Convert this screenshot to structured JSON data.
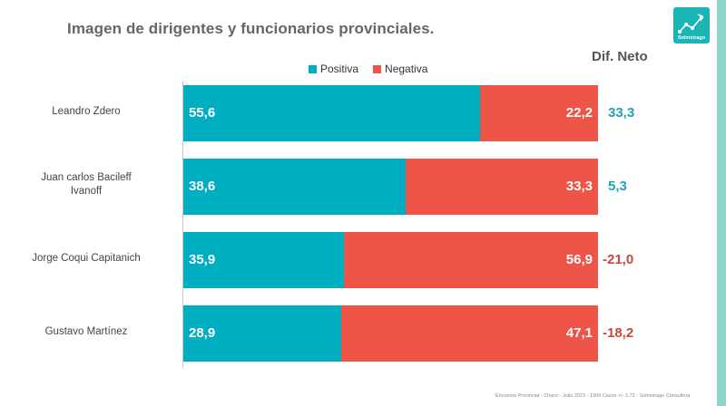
{
  "title": "Imagen de dirigentes y funcionarios provinciales.",
  "logo": {
    "text": "Solmoirago",
    "icon": "trend-chart-icon"
  },
  "neto_header": "Dif. Neto",
  "legend": [
    {
      "label": "Positiva",
      "color": "#00aec1"
    },
    {
      "label": "Negativa",
      "color": "#ef5448"
    }
  ],
  "footer": "Encuesta Provincial -  Chaco -  Julio 2023 - 1300 Casos +/- 2,72 - Solmoirago Consultora",
  "colors": {
    "positive_text": "#1ea3b5",
    "negative_text": "#c9473c"
  },
  "chart_data": {
    "type": "bar",
    "orientation": "horizontal",
    "stacked": true,
    "title": "Imagen de dirigentes y funcionarios provinciales.",
    "categories": [
      {
        "line1": "Leandro Zdero",
        "line2": ""
      },
      {
        "line1": "Juan carlos Bacileff",
        "line2": "Ivanoff"
      },
      {
        "line1": "Jorge Coqui Capitanich",
        "line2": ""
      },
      {
        "line1": "Gustavo Martínez",
        "line2": ""
      }
    ],
    "series": [
      {
        "name": "Positiva",
        "color": "#00aec1",
        "values": [
          55.6,
          38.6,
          35.9,
          28.9
        ],
        "labels": [
          "55,6",
          "38,6",
          "35,9",
          "28,9"
        ]
      },
      {
        "name": "Negativa",
        "color": "#ef5448",
        "values": [
          22.2,
          33.3,
          56.9,
          47.1
        ],
        "labels": [
          "22,2",
          "33,3",
          "56,9",
          "47,1"
        ]
      }
    ],
    "dif_neto": {
      "values": [
        33.3,
        5.3,
        -21.0,
        -18.2
      ],
      "labels": [
        "33,3",
        "5,3",
        "-21,0",
        "-18,2"
      ]
    },
    "legend_position": "top-center",
    "grid": false
  }
}
